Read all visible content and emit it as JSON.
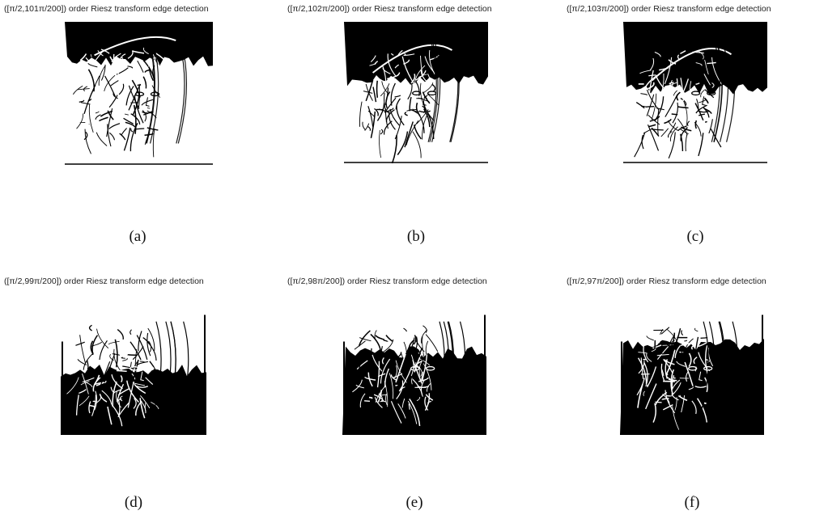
{
  "figure": {
    "panels": [
      {
        "title": "([π/2,101π/200]) order Riesz transform edge detection",
        "caption": "(a)",
        "variant": "dark-top",
        "dark_fraction": 0.26
      },
      {
        "title": "([π/2,102π/200]) order Riesz transform edge detection",
        "caption": "(b)",
        "variant": "dark-top",
        "dark_fraction": 0.4
      },
      {
        "title": "([π/2,103π/200]) order Riesz transform edge detection",
        "caption": "(c)",
        "variant": "dark-top",
        "dark_fraction": 0.46
      },
      {
        "title": "([π/2,99π/200]) order Riesz transform edge detection",
        "caption": "(d)",
        "variant": "dark-bottom",
        "dark_fraction": 0.48
      },
      {
        "title": "([π/2,98π/200]) order Riesz transform edge detection",
        "caption": "(e)",
        "variant": "dark-bottom",
        "dark_fraction": 0.62
      },
      {
        "title": "([π/2,97π/200]) order Riesz transform edge detection",
        "caption": "(f)",
        "variant": "dark-bottom",
        "dark_fraction": 0.68
      }
    ]
  }
}
